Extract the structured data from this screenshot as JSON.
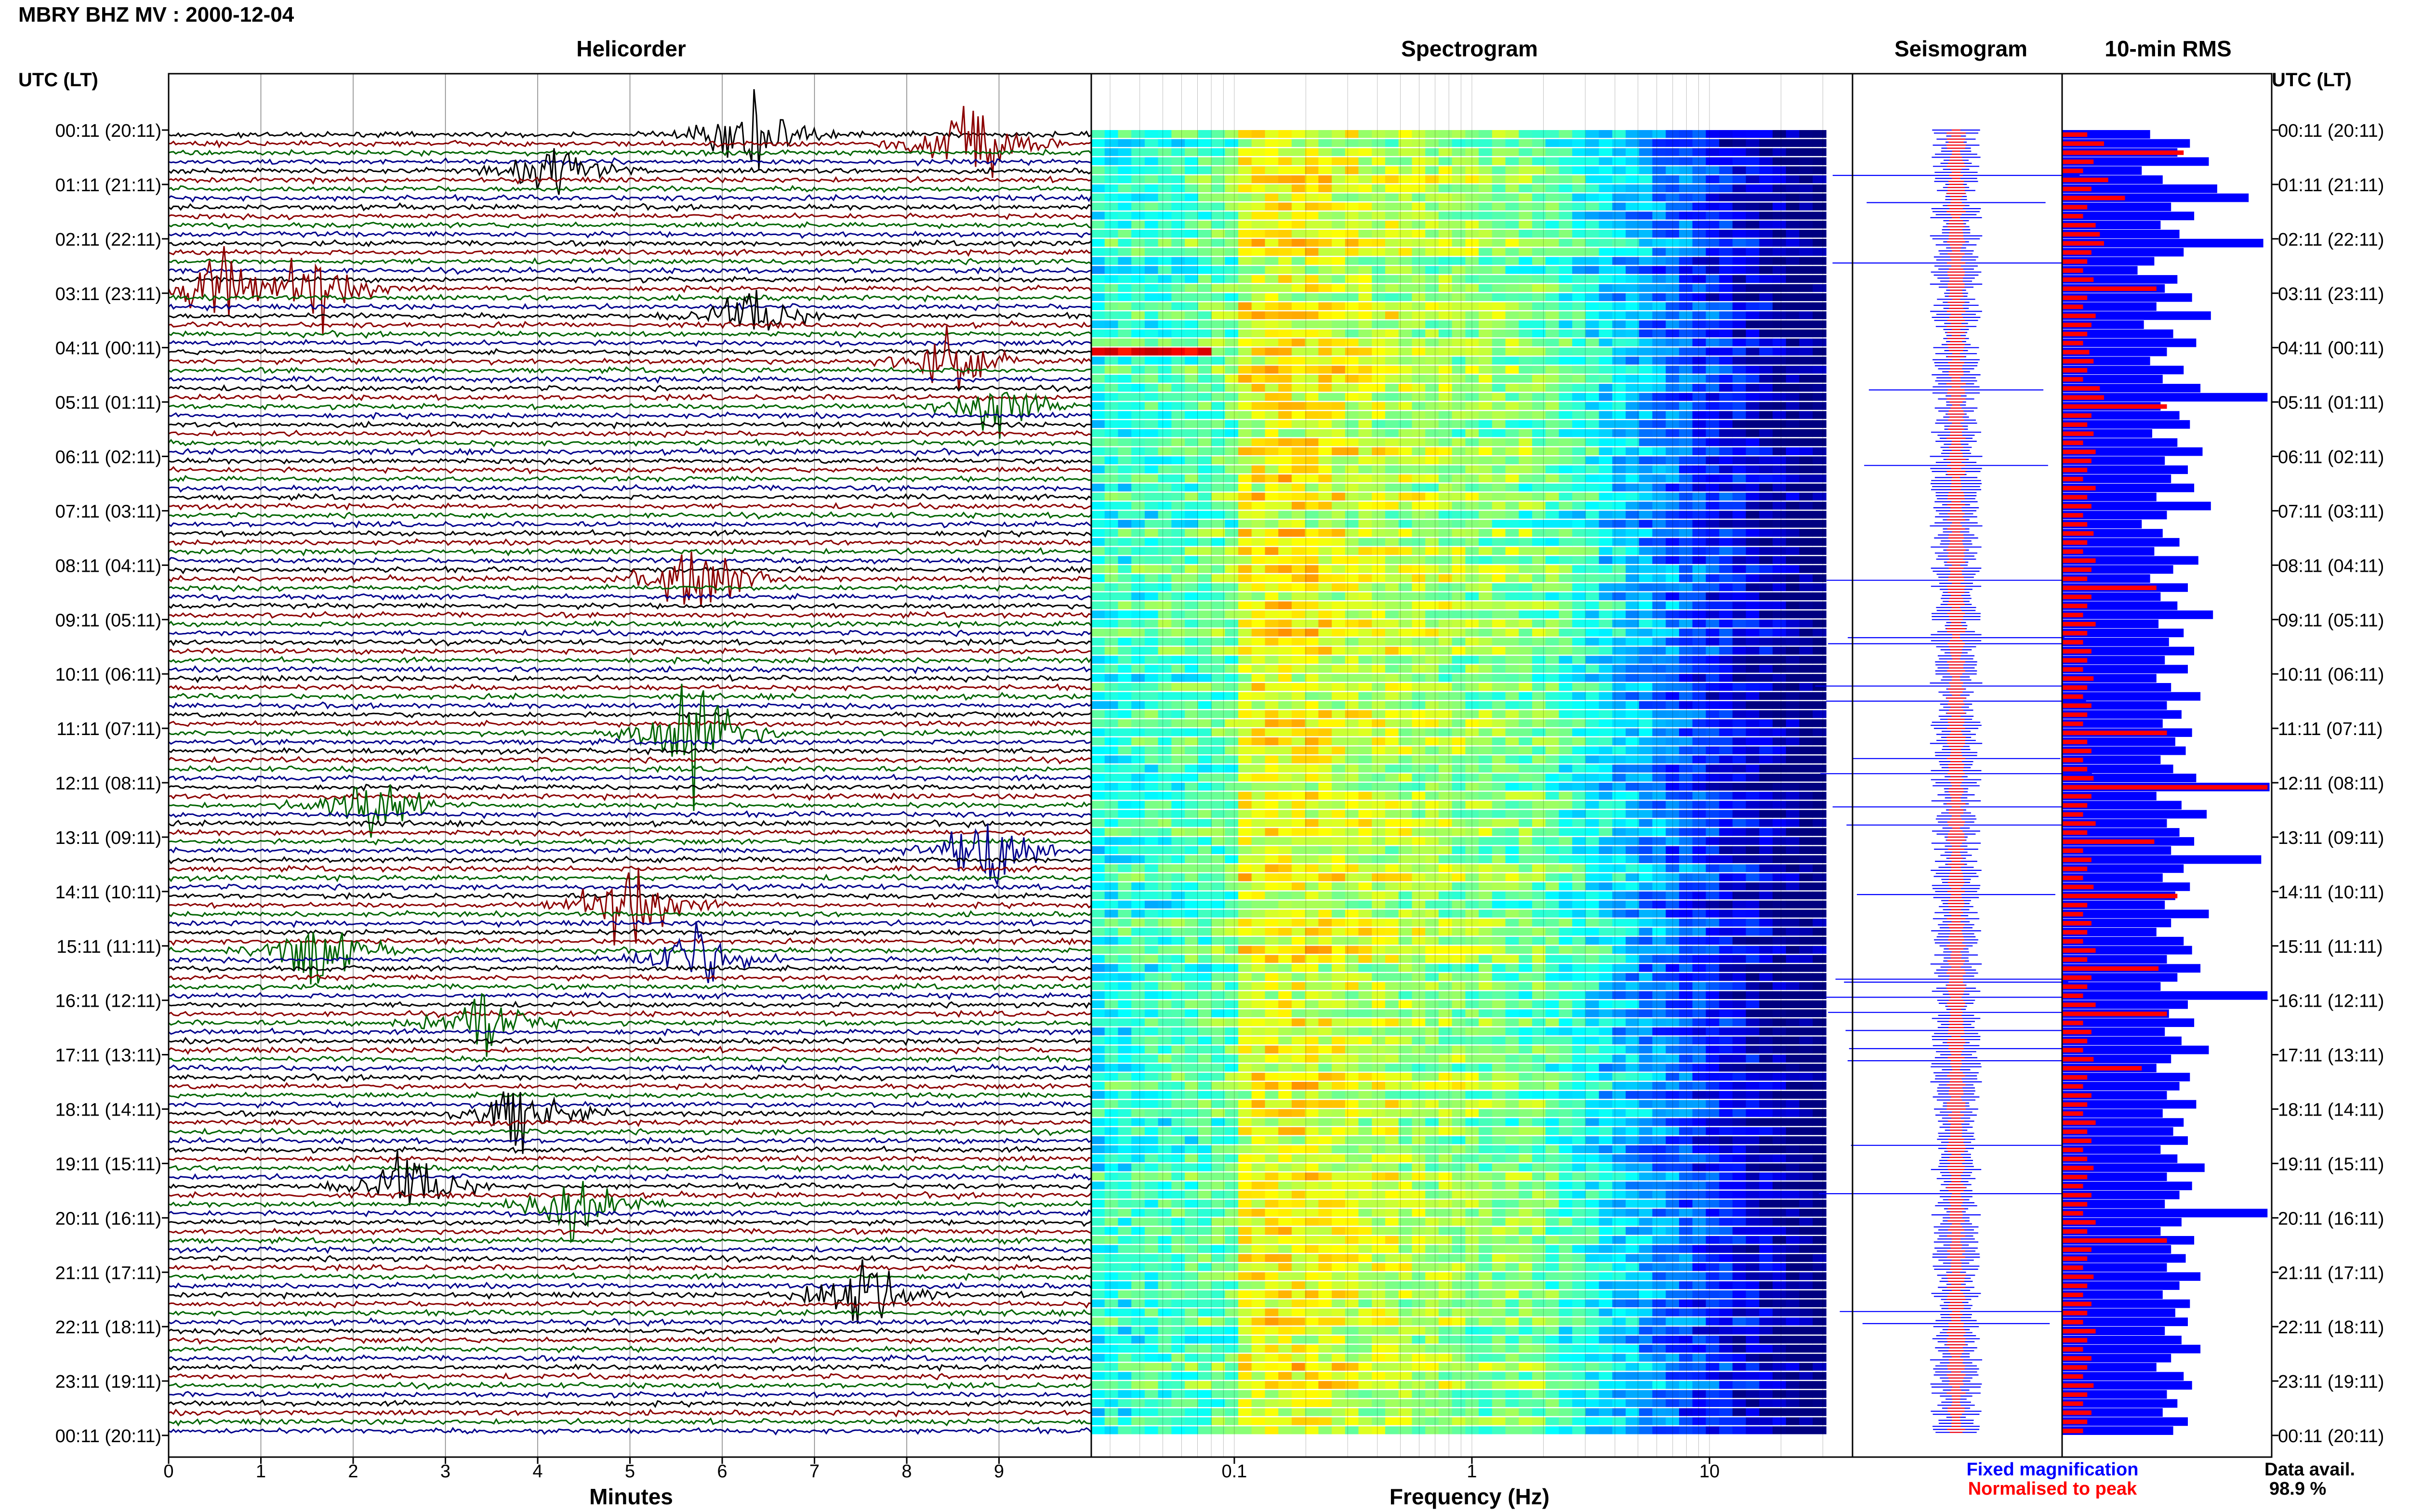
{
  "header": {
    "title": "MBRY BHZ MV : 2000-12-04",
    "utc_left": "UTC (LT)",
    "utc_right": "UTC (LT)"
  },
  "panels": {
    "helicorder": "Helicorder",
    "spectrogram": "Spectrogram",
    "seismogram": "Seismogram",
    "rms": "10-min RMS"
  },
  "axes": {
    "helicorder_xlabel": "Minutes",
    "spectrogram_xlabel": "Frequency (Hz)"
  },
  "legend": {
    "fixed": "Fixed magnification",
    "normalised": "Normalised to peak",
    "fixed_color": "#0000ff",
    "normalised_color": "#ff0000"
  },
  "data_avail": {
    "label": "Data avail.",
    "value": "98.9 %"
  },
  "colors": {
    "trace_colors": [
      "#000000",
      "#8b0000",
      "#006400",
      "#00008b"
    ],
    "rms_fixed": "#0000ff",
    "rms_norm": "#ff0000"
  },
  "chart_data": [
    {
      "type": "line",
      "name": "helicorder",
      "xlabel": "Minutes",
      "xlim": [
        0,
        10
      ],
      "x_ticks": [
        "0",
        "1",
        "2",
        "3",
        "4",
        "5",
        "6",
        "7",
        "8",
        "9"
      ],
      "y_tick_labels": [
        "00:11 (20:11)",
        "01:11 (21:11)",
        "02:11 (22:11)",
        "03:11 (23:11)",
        "04:11 (00:11)",
        "05:11 (01:11)",
        "06:11 (02:11)",
        "07:11 (03:11)",
        "08:11 (04:11)",
        "09:11 (05:11)",
        "10:11 (06:11)",
        "11:11 (07:11)",
        "12:11 (08:11)",
        "13:11 (09:11)",
        "14:11 (10:11)",
        "15:11 (11:11)",
        "16:11 (12:11)",
        "17:11 (13:11)",
        "18:11 (14:11)",
        "19:11 (15:11)",
        "20:11 (16:11)",
        "21:11 (17:11)",
        "22:11 (18:11)",
        "23:11 (19:11)",
        "00:11 (20:11)"
      ],
      "rows": 144,
      "grid": true,
      "events": [
        {
          "row": 0,
          "minute": 6.3,
          "amp": 5,
          "color": 2
        },
        {
          "row": 1,
          "minute": 8.7,
          "amp": 6,
          "color": 1
        },
        {
          "row": 4,
          "minute": 4.2,
          "amp": 3,
          "color": 3
        },
        {
          "row": 17,
          "minute": 0.5,
          "amp": 4,
          "color": 0
        },
        {
          "row": 17,
          "minute": 1.6,
          "amp": 4,
          "color": 3
        },
        {
          "row": 20,
          "minute": 6.3,
          "amp": 3,
          "color": 3
        },
        {
          "row": 25,
          "minute": 8.5,
          "amp": 3,
          "color": 3
        },
        {
          "row": 30,
          "minute": 9.0,
          "amp": 3,
          "color": 3
        },
        {
          "row": 49,
          "minute": 5.8,
          "amp": 5,
          "color": 1
        },
        {
          "row": 66,
          "minute": 5.7,
          "amp": 6,
          "color": 0
        },
        {
          "row": 74,
          "minute": 2.2,
          "amp": 4,
          "color": 3
        },
        {
          "row": 79,
          "minute": 8.9,
          "amp": 5,
          "color": 3
        },
        {
          "row": 85,
          "minute": 5.0,
          "amp": 5,
          "color": 2
        },
        {
          "row": 90,
          "minute": 1.6,
          "amp": 4,
          "color": 1
        },
        {
          "row": 91,
          "minute": 5.7,
          "amp": 4,
          "color": 1
        },
        {
          "row": 98,
          "minute": 3.4,
          "amp": 4,
          "color": 2
        },
        {
          "row": 108,
          "minute": 3.8,
          "amp": 4,
          "color": 1
        },
        {
          "row": 116,
          "minute": 2.6,
          "amp": 4,
          "color": 2
        },
        {
          "row": 118,
          "minute": 4.5,
          "amp": 4,
          "color": 3
        },
        {
          "row": 128,
          "minute": 7.5,
          "amp": 5,
          "color": 3
        }
      ]
    },
    {
      "type": "heatmap",
      "name": "spectrogram",
      "xlabel": "Frequency (Hz)",
      "x_scale": "log",
      "x_tick_labels": [
        "0.1",
        "1",
        "10"
      ],
      "x_tick_values": [
        0.1,
        1,
        10
      ],
      "xlim": [
        0.025,
        40
      ],
      "rows": 144,
      "colormap": "jet"
    },
    {
      "type": "line",
      "name": "seismogram",
      "series": [
        {
          "name": "Fixed magnification",
          "color": "#0000ff"
        },
        {
          "name": "Normalised to peak",
          "color": "#ff0000"
        }
      ],
      "rows": 144
    },
    {
      "type": "bar",
      "name": "10-min RMS",
      "orientation": "horizontal",
      "rows": 144,
      "xlim": [
        0,
        1
      ],
      "series": [
        {
          "name": "Fixed magnification",
          "color": "#0000ff",
          "values": [
            0.42,
            0.61,
            0.55,
            0.7,
            0.38,
            0.48,
            0.74,
            0.89,
            0.52,
            0.63,
            0.47,
            0.56,
            0.96,
            0.58,
            0.44,
            0.36,
            0.55,
            0.49,
            0.62,
            0.45,
            0.71,
            0.39,
            0.53,
            0.64,
            0.5,
            0.42,
            0.58,
            0.48,
            0.66,
            0.98,
            0.47,
            0.56,
            0.61,
            0.43,
            0.55,
            0.67,
            0.49,
            0.6,
            0.52,
            0.63,
            0.45,
            0.71,
            0.5,
            0.38,
            0.48,
            0.56,
            0.44,
            0.65,
            0.53,
            0.42,
            0.6,
            0.47,
            0.55,
            0.72,
            0.46,
            0.58,
            0.51,
            0.63,
            0.49,
            0.6,
            0.45,
            0.52,
            0.66,
            0.5,
            0.57,
            0.48,
            0.62,
            0.54,
            0.59,
            0.47,
            0.53,
            0.64,
            0.99,
            0.45,
            0.57,
            0.69,
            0.5,
            0.56,
            0.63,
            0.52,
            0.95,
            0.58,
            0.48,
            0.61,
            0.54,
            0.49,
            0.7,
            0.52,
            0.45,
            0.58,
            0.62,
            0.5,
            0.66,
            0.55,
            0.47,
            0.98,
            0.6,
            0.51,
            0.63,
            0.49,
            0.57,
            0.7,
            0.52,
            0.45,
            0.61,
            0.56,
            0.5,
            0.64,
            0.48,
            0.58,
            0.53,
            0.6,
            0.47,
            0.55,
            0.68,
            0.5,
            0.62,
            0.56,
            0.49,
            0.98,
            0.57,
            0.47,
            0.63,
            0.52,
            0.59,
            0.5,
            0.66,
            0.56,
            0.48,
            0.61,
            0.54,
            0.6,
            0.49,
            0.57,
            0.66,
            0.52,
            0.45,
            0.58,
            0.62,
            0.5,
            0.55,
            0.48,
            0.6,
            0.53
          ]
        },
        {
          "name": "Normalised to peak",
          "color": "#ff0000",
          "values": [
            0.12,
            0.2,
            0.58,
            0.15,
            0.1,
            0.22,
            0.14,
            0.3,
            0.12,
            0.1,
            0.16,
            0.18,
            0.2,
            0.14,
            0.12,
            0.1,
            0.15,
            0.45,
            0.12,
            0.1,
            0.16,
            0.14,
            0.12,
            0.1,
            0.13,
            0.15,
            0.12,
            0.1,
            0.18,
            0.2,
            0.5,
            0.14,
            0.12,
            0.15,
            0.1,
            0.16,
            0.14,
            0.12,
            0.1,
            0.16,
            0.12,
            0.14,
            0.1,
            0.12,
            0.15,
            0.12,
            0.1,
            0.16,
            0.14,
            0.12,
            0.45,
            0.14,
            0.12,
            0.1,
            0.16,
            0.12,
            0.1,
            0.14,
            0.12,
            0.1,
            0.15,
            0.12,
            0.1,
            0.14,
            0.12,
            0.1,
            0.5,
            0.12,
            0.14,
            0.1,
            0.12,
            0.15,
            0.98,
            0.14,
            0.12,
            0.1,
            0.16,
            0.12,
            0.44,
            0.1,
            0.14,
            0.12,
            0.1,
            0.15,
            0.55,
            0.12,
            0.1,
            0.14,
            0.12,
            0.1,
            0.16,
            0.12,
            0.46,
            0.14,
            0.12,
            0.1,
            0.16,
            0.5,
            0.1,
            0.14,
            0.12,
            0.1,
            0.15,
            0.38,
            0.12,
            0.1,
            0.14,
            0.12,
            0.1,
            0.16,
            0.12,
            0.14,
            0.1,
            0.12,
            0.15,
            0.12,
            0.1,
            0.14,
            0.12,
            0.1,
            0.16,
            0.12,
            0.5,
            0.14,
            0.12,
            0.1,
            0.15,
            0.12,
            0.1,
            0.14,
            0.12,
            0.1,
            0.16,
            0.12,
            0.1,
            0.14,
            0.12,
            0.1,
            0.15,
            0.12,
            0.1,
            0.14,
            0.12,
            0.1
          ]
        }
      ]
    }
  ]
}
